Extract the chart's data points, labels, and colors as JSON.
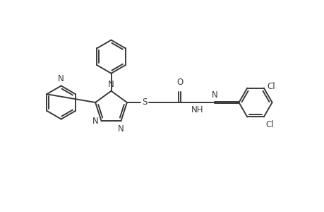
{
  "background_color": "#ffffff",
  "line_color": "#3a3a3a",
  "line_width": 1.4,
  "font_size": 8.5,
  "fig_width": 4.6,
  "fig_height": 3.0,
  "dpi": 100,
  "xlim": [
    0,
    10
  ],
  "ylim": [
    0,
    6.5
  ]
}
